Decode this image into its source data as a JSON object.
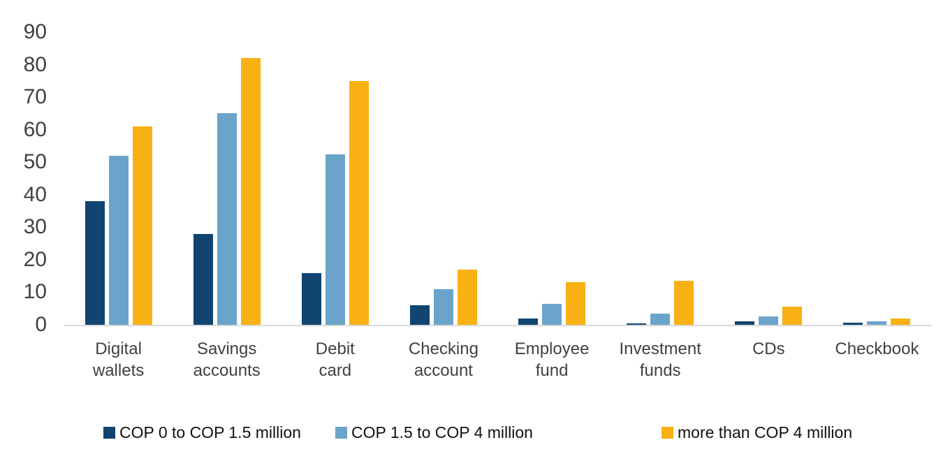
{
  "chart_data": {
    "type": "bar",
    "title": "",
    "xlabel": "",
    "ylabel": "",
    "ylim": [
      0,
      90
    ],
    "yticks": [
      0,
      10,
      20,
      30,
      40,
      50,
      60,
      70,
      80,
      90
    ],
    "grid": false,
    "legend_position": "bottom",
    "axis_line_color": "#D9D9D9",
    "label_color": "#414042",
    "categories": [
      "Digital wallets",
      "Savings accounts",
      "Debit card",
      "Checking account",
      "Employee fund",
      "Investment funds",
      "CDs",
      "Checkbook"
    ],
    "category_lines": [
      [
        "Digital",
        "wallets"
      ],
      [
        "Savings",
        "accounts"
      ],
      [
        "Debit",
        "card"
      ],
      [
        "Checking",
        "account"
      ],
      [
        "Employee",
        "fund"
      ],
      [
        "Investment",
        "funds"
      ],
      [
        "CDs"
      ],
      [
        "Checkbook"
      ]
    ],
    "series": [
      {
        "name": "COP 0 to COP 1.5 million",
        "color": "#114470",
        "values": [
          38,
          28,
          16,
          6,
          2,
          0.5,
          1,
          0.6
        ]
      },
      {
        "name": "COP 1.5 to COP 4 million",
        "color": "#6BA4CA",
        "values": [
          52,
          65,
          52.5,
          11,
          6.5,
          3.5,
          2.5,
          1
        ]
      },
      {
        "name": "more than COP 4 million",
        "color": "#F9B013",
        "values": [
          61,
          82,
          75,
          17,
          13,
          13.5,
          5.5,
          2
        ]
      }
    ]
  }
}
